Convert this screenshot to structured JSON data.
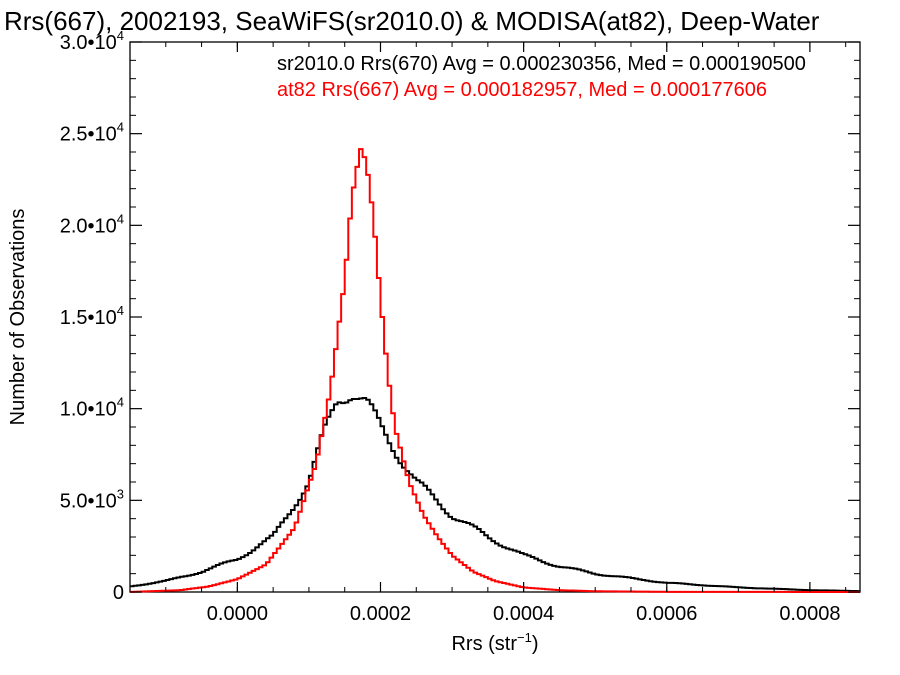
{
  "chart_data": {
    "type": "line",
    "title": "Rrs(667), 2002193, SeaWiFS(sr2010.0) & MODISA(at82), Deep-Water",
    "xlabel_base": "Rrs (str",
    "xlabel_exp": "−1",
    "xlabel_close": ")",
    "ylabel": "Number of Observations",
    "xlim": [
      -0.00015,
      0.00087
    ],
    "ylim": [
      0,
      30000
    ],
    "x_ticks": [
      {
        "value": 0.0,
        "label": "0.0000"
      },
      {
        "value": 0.0002,
        "label": "0.0002"
      },
      {
        "value": 0.0004,
        "label": "0.0004"
      },
      {
        "value": 0.0006,
        "label": "0.0006"
      },
      {
        "value": 0.0008,
        "label": "0.0008"
      }
    ],
    "y_ticks": [
      {
        "value": 0,
        "mant": "0",
        "exp": ""
      },
      {
        "value": 5000,
        "mant": "5.0•10",
        "exp": "3"
      },
      {
        "value": 10000,
        "mant": "1.0•10",
        "exp": "4"
      },
      {
        "value": 15000,
        "mant": "1.5•10",
        "exp": "4"
      },
      {
        "value": 20000,
        "mant": "2.0•10",
        "exp": "4"
      },
      {
        "value": 25000,
        "mant": "2.5•10",
        "exp": "4"
      },
      {
        "value": 30000,
        "mant": "3.0•10",
        "exp": "4"
      }
    ],
    "grid": false,
    "series": [
      {
        "name": "sr2010.0 Rrs(670) Avg = 0.000230356, Med = 0.000190500",
        "color": "#000000",
        "x": [
          -0.00015,
          -0.0001,
          -5e-05,
          0.0,
          5e-05,
          0.0001,
          0.00012,
          0.00014,
          0.00016,
          0.00018,
          0.0002,
          0.00022,
          0.00025,
          0.0003,
          0.00035,
          0.0004,
          0.00045,
          0.0005,
          0.0006,
          0.0007,
          0.0008,
          0.00087
        ],
        "y": [
          300,
          600,
          1100,
          1800,
          3000,
          6000,
          8500,
          10500,
          11000,
          10300,
          9000,
          7800,
          6000,
          4200,
          3000,
          2000,
          1400,
          1000,
          500,
          250,
          100,
          50
        ]
      },
      {
        "name": "at82 Rrs(667) Avg = 0.000182957, Med = 0.000177606",
        "color": "#ff0000",
        "x": [
          -0.00015,
          -8e-05,
          -4e-05,
          0.0,
          4e-05,
          8e-05,
          0.00011,
          0.00013,
          0.00015,
          0.00016,
          0.000172,
          0.00018,
          0.00019,
          0.0002,
          0.00021,
          0.00022,
          0.00024,
          0.00026,
          0.00028,
          0.0003,
          0.00033,
          0.00036,
          0.0004,
          0.00045,
          0.0005,
          0.0006,
          0.00087
        ],
        "y": [
          0,
          100,
          300,
          700,
          1500,
          3500,
          7000,
          11000,
          17000,
          21500,
          24200,
          23500,
          20500,
          16000,
          12000,
          9000,
          6000,
          4200,
          3000,
          2000,
          1100,
          600,
          250,
          100,
          40,
          10,
          0
        ]
      }
    ]
  }
}
